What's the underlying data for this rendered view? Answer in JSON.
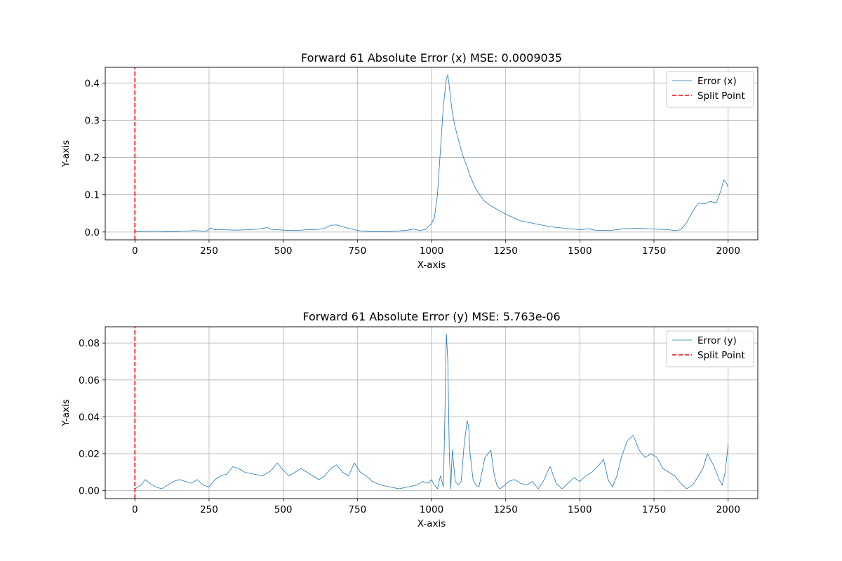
{
  "chart_data": [
    {
      "type": "line",
      "title": "Forward 61 Absolute Error (x) MSE: 0.0009035",
      "xlabel": "X-axis",
      "ylabel": "Y-axis",
      "xlim": [
        -100,
        2100
      ],
      "ylim": [
        -0.021,
        0.442
      ],
      "xticks": [
        0,
        250,
        500,
        750,
        1000,
        1250,
        1500,
        1750,
        2000
      ],
      "xtick_labels": [
        "0",
        "250",
        "500",
        "750",
        "1000",
        "1250",
        "1500",
        "1750",
        "2000"
      ],
      "yticks": [
        0.0,
        0.1,
        0.2,
        0.3,
        0.4
      ],
      "ytick_labels": [
        "0.0",
        "0.1",
        "0.2",
        "0.3",
        "0.4"
      ],
      "grid": true,
      "legend_position": "top-right",
      "series": [
        {
          "name": "Error (x)",
          "color": "#1f77b4",
          "style": "solid",
          "x": [
            0,
            40,
            80,
            120,
            160,
            200,
            240,
            255,
            270,
            300,
            340,
            380,
            420,
            445,
            460,
            480,
            500,
            540,
            580,
            620,
            640,
            660,
            680,
            700,
            740,
            760,
            800,
            840,
            880,
            920,
            940,
            960,
            980,
            990,
            1000,
            1010,
            1020,
            1030,
            1040,
            1050,
            1055,
            1060,
            1070,
            1080,
            1090,
            1100,
            1110,
            1120,
            1130,
            1150,
            1175,
            1200,
            1250,
            1300,
            1350,
            1400,
            1450,
            1500,
            1530,
            1550,
            1600,
            1650,
            1700,
            1750,
            1780,
            1800,
            1820,
            1840,
            1850,
            1860,
            1880,
            1900,
            1920,
            1940,
            1960,
            1975,
            1985,
            1995,
            2000
          ],
          "y": [
            0.001,
            0.002,
            0.002,
            0.001,
            0.002,
            0.004,
            0.002,
            0.011,
            0.006,
            0.006,
            0.005,
            0.006,
            0.008,
            0.012,
            0.007,
            0.006,
            0.005,
            0.004,
            0.006,
            0.007,
            0.01,
            0.018,
            0.019,
            0.014,
            0.006,
            0.003,
            0.001,
            0.001,
            0.002,
            0.005,
            0.008,
            0.004,
            0.007,
            0.015,
            0.022,
            0.04,
            0.1,
            0.22,
            0.34,
            0.41,
            0.422,
            0.39,
            0.32,
            0.28,
            0.25,
            0.22,
            0.195,
            0.175,
            0.15,
            0.115,
            0.085,
            0.07,
            0.048,
            0.03,
            0.022,
            0.014,
            0.01,
            0.006,
            0.009,
            0.005,
            0.004,
            0.009,
            0.01,
            0.008,
            0.007,
            0.006,
            0.004,
            0.006,
            0.015,
            0.025,
            0.055,
            0.078,
            0.075,
            0.082,
            0.078,
            0.11,
            0.14,
            0.13,
            0.12
          ]
        },
        {
          "name": "Split Point",
          "color": "#ff0000",
          "style": "dashed",
          "x": [
            0,
            0
          ],
          "y": [
            -0.021,
            0.442
          ]
        }
      ]
    },
    {
      "type": "line",
      "title": "Forward 61 Absolute Error (y) MSE: 5.763e-06",
      "xlabel": "X-axis",
      "ylabel": "Y-axis",
      "xlim": [
        -100,
        2100
      ],
      "ylim": [
        -0.0043,
        0.0888
      ],
      "xticks": [
        0,
        250,
        500,
        750,
        1000,
        1250,
        1500,
        1750,
        2000
      ],
      "xtick_labels": [
        "0",
        "250",
        "500",
        "750",
        "1000",
        "1250",
        "1500",
        "1750",
        "2000"
      ],
      "yticks": [
        0.0,
        0.02,
        0.04,
        0.06,
        0.08
      ],
      "ytick_labels": [
        "0.00",
        "0.02",
        "0.04",
        "0.06",
        "0.08"
      ],
      "grid": true,
      "legend_position": "top-right",
      "series": [
        {
          "name": "Error (y)",
          "color": "#1f77b4",
          "style": "solid",
          "x": [
            0,
            20,
            35,
            50,
            70,
            90,
            110,
            130,
            150,
            170,
            190,
            210,
            230,
            250,
            270,
            290,
            310,
            330,
            350,
            370,
            400,
            430,
            460,
            480,
            490,
            500,
            520,
            540,
            560,
            580,
            600,
            620,
            640,
            660,
            680,
            700,
            720,
            740,
            760,
            780,
            800,
            830,
            860,
            890,
            920,
            950,
            970,
            990,
            1000,
            1010,
            1020,
            1030,
            1040,
            1045,
            1050,
            1055,
            1060,
            1065,
            1070,
            1080,
            1090,
            1100,
            1110,
            1120,
            1125,
            1130,
            1140,
            1150,
            1160,
            1170,
            1180,
            1200,
            1210,
            1220,
            1230,
            1240,
            1260,
            1280,
            1300,
            1320,
            1340,
            1360,
            1380,
            1390,
            1400,
            1420,
            1440,
            1460,
            1480,
            1500,
            1520,
            1540,
            1560,
            1580,
            1595,
            1610,
            1625,
            1640,
            1660,
            1680,
            1700,
            1720,
            1740,
            1760,
            1780,
            1800,
            1820,
            1840,
            1860,
            1880,
            1900,
            1915,
            1930,
            1950,
            1970,
            1980,
            1990,
            2000
          ],
          "y": [
            0.001,
            0.003,
            0.006,
            0.004,
            0.002,
            0.001,
            0.003,
            0.005,
            0.006,
            0.005,
            0.004,
            0.006,
            0.003,
            0.002,
            0.006,
            0.008,
            0.009,
            0.013,
            0.012,
            0.01,
            0.009,
            0.008,
            0.011,
            0.015,
            0.013,
            0.011,
            0.008,
            0.01,
            0.012,
            0.01,
            0.008,
            0.006,
            0.008,
            0.012,
            0.014,
            0.01,
            0.008,
            0.015,
            0.01,
            0.008,
            0.005,
            0.003,
            0.002,
            0.001,
            0.002,
            0.003,
            0.005,
            0.004,
            0.006,
            0.003,
            0.001,
            0.008,
            0.002,
            0.04,
            0.085,
            0.07,
            0.02,
            0.001,
            0.022,
            0.005,
            0.003,
            0.005,
            0.025,
            0.038,
            0.035,
            0.02,
            0.006,
            0.003,
            0.002,
            0.01,
            0.018,
            0.022,
            0.01,
            0.003,
            0.001,
            0.002,
            0.005,
            0.006,
            0.004,
            0.003,
            0.005,
            0.001,
            0.006,
            0.01,
            0.013,
            0.004,
            0.001,
            0.004,
            0.007,
            0.005,
            0.008,
            0.01,
            0.013,
            0.017,
            0.006,
            0.002,
            0.008,
            0.018,
            0.027,
            0.03,
            0.022,
            0.018,
            0.02,
            0.018,
            0.012,
            0.01,
            0.008,
            0.004,
            0.001,
            0.003,
            0.008,
            0.012,
            0.02,
            0.014,
            0.006,
            0.003,
            0.01,
            0.025
          ]
        },
        {
          "name": "Split Point",
          "color": "#ff0000",
          "style": "dashed",
          "x": [
            0,
            0
          ],
          "y": [
            -0.0043,
            0.0888
          ]
        }
      ]
    }
  ]
}
